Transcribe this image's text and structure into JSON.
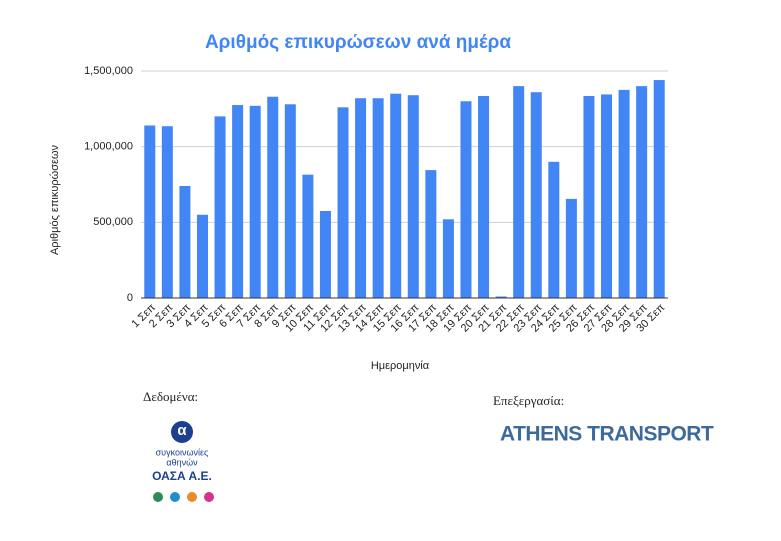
{
  "chart_data": {
    "type": "bar",
    "title": "Αριθμός επικυρώσεων ανά ημέρα",
    "y_label": "Αριθμός επικυρώσεων",
    "x_label": "Ημερομηνία",
    "categories": [
      "1 Σεπ",
      "2 Σεπ",
      "3 Σεπ",
      "4 Σεπ",
      "5 Σεπ",
      "6 Σεπ",
      "7 Σεπ",
      "8 Σεπ",
      "9 Σεπ",
      "10 Σεπ",
      "11 Σεπ",
      "12 Σεπ",
      "13 Σεπ",
      "14 Σεπ",
      "15 Σεπ",
      "16 Σεπ",
      "17 Σεπ",
      "18 Σεπ",
      "19 Σεπ",
      "20 Σεπ",
      "21 Σεπ",
      "22 Σεπ",
      "23 Σεπ",
      "24 Σεπ",
      "25 Σεπ",
      "26 Σεπ",
      "27 Σεπ",
      "28 Σεπ",
      "29 Σεπ",
      "30 Σεπ"
    ],
    "values": [
      1140000,
      1135000,
      740000,
      550000,
      1200000,
      1275000,
      1270000,
      1330000,
      1280000,
      815000,
      575000,
      1260000,
      1320000,
      1320000,
      1350000,
      1340000,
      845000,
      520000,
      1300000,
      1335000,
      10000,
      1400000,
      1360000,
      900000,
      655000,
      1335000,
      1345000,
      1375000,
      1400000,
      1440000
    ],
    "color": "#4285f4",
    "ylim": [
      0,
      1500000
    ],
    "yticks": [
      0,
      {
        "value": 500000,
        "label": "500,000"
      },
      {
        "value": 1000000,
        "label": "1,000,000"
      },
      {
        "value": 1500000,
        "label": "1,500,000"
      }
    ],
    "grid": true
  },
  "credits": {
    "data_label": "Δεδομένα:",
    "oasa_line1": "συγκοινωνίες",
    "oasa_line2": "αθηνών",
    "oasa_name": "ΟΑΣΑ Α.Ε.",
    "processing_label": "Επεξεργασία:",
    "brand": "ATHENS TRANSPORT"
  }
}
